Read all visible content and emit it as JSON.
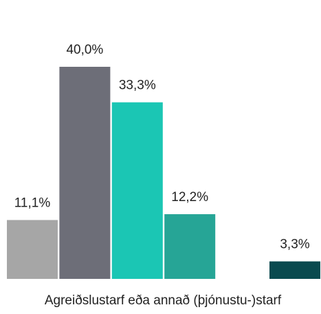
{
  "chart_data": {
    "type": "bar",
    "categories": [
      "Agreiðslustarf eða annað (þjónustu-)starf"
    ],
    "series": [
      {
        "color": "#a6a6a6",
        "values": [
          11.1
        ],
        "value_labels": [
          "11,1%"
        ]
      },
      {
        "color": "#6d6e78",
        "values": [
          40.0
        ],
        "value_labels": [
          "40,0%"
        ]
      },
      {
        "color": "#1bc6b4",
        "values": [
          33.3
        ],
        "value_labels": [
          "33,3%"
        ]
      },
      {
        "color": "#26a596",
        "values": [
          12.2
        ],
        "value_labels": [
          "12,2%"
        ]
      },
      {
        "values": [
          null
        ]
      },
      {
        "color": "#0a4a4f",
        "values": [
          3.3
        ],
        "value_labels": [
          "3,3%"
        ]
      }
    ]
  }
}
